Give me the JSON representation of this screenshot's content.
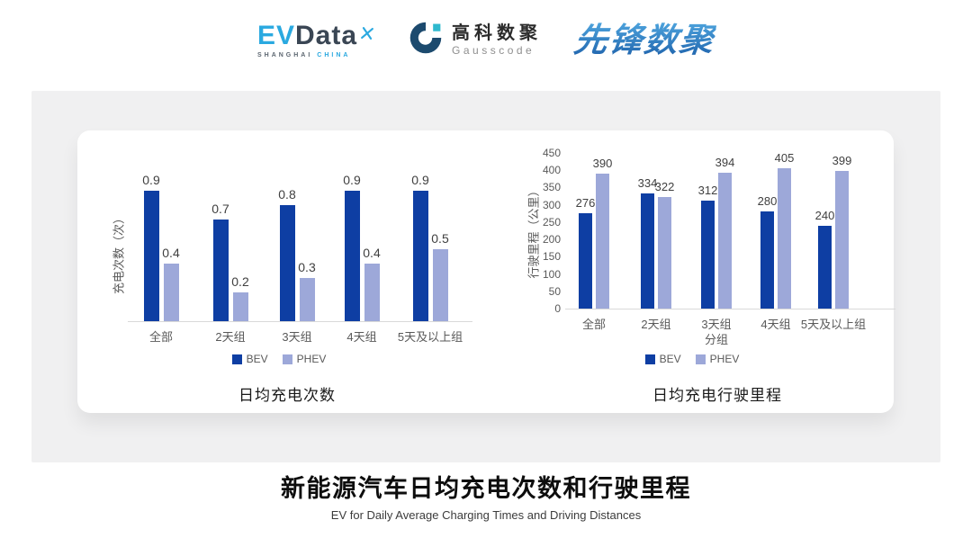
{
  "header": {
    "evdata": {
      "ev": "EV",
      "data": "Data",
      "sub_left": "SHANGHAI",
      "sub_right": "CHINA"
    },
    "gausscode": {
      "cn": "高科数聚",
      "en": "Gausscode"
    },
    "xianfeng": "先锋数聚"
  },
  "chart_data": [
    {
      "type": "bar",
      "title": "日均充电次数",
      "xlabel": "",
      "ylabel": "充电次数（次）",
      "categories": [
        "全部",
        "2天组",
        "3天组",
        "4天组",
        "5天及以上组"
      ],
      "series": [
        {
          "name": "BEV",
          "color": "#0E3EA3",
          "values": [
            0.9,
            0.7,
            0.8,
            0.9,
            0.9
          ]
        },
        {
          "name": "PHEV",
          "color": "#9DA8D9",
          "values": [
            0.4,
            0.2,
            0.3,
            0.4,
            0.5
          ]
        }
      ],
      "ylim": [
        0,
        1
      ],
      "y_ticks_visible": false,
      "grid": false,
      "legend_position": "bottom",
      "value_labels": true
    },
    {
      "type": "bar",
      "title": "日均充电行驶里程",
      "xlabel": "分组",
      "ylabel": "行驶里程（公里）",
      "categories": [
        "全部",
        "2天组",
        "3天组",
        "4天组",
        "5天及以上组"
      ],
      "series": [
        {
          "name": "BEV",
          "color": "#0E3EA3",
          "values": [
            276,
            334,
            312,
            280,
            240
          ]
        },
        {
          "name": "PHEV",
          "color": "#9DA8D9",
          "values": [
            390,
            322,
            394,
            405,
            399
          ]
        }
      ],
      "ylim": [
        0,
        450
      ],
      "y_tick_step": 50,
      "y_ticks_visible": true,
      "grid": false,
      "legend_position": "bottom",
      "value_labels": true
    }
  ],
  "footer": {
    "title": "新能源汽车日均充电次数和行驶里程",
    "subtitle": "EV for Daily Average Charging Times and Driving Distances"
  },
  "colors": {
    "bev": "#0E3EA3",
    "phev": "#9DA8D9",
    "card_bg": "#F0F0F1",
    "panel_bg": "#FFFFFF",
    "axis_line": "#D9D9D9",
    "label_text": "#595959",
    "value_text": "#404040"
  }
}
